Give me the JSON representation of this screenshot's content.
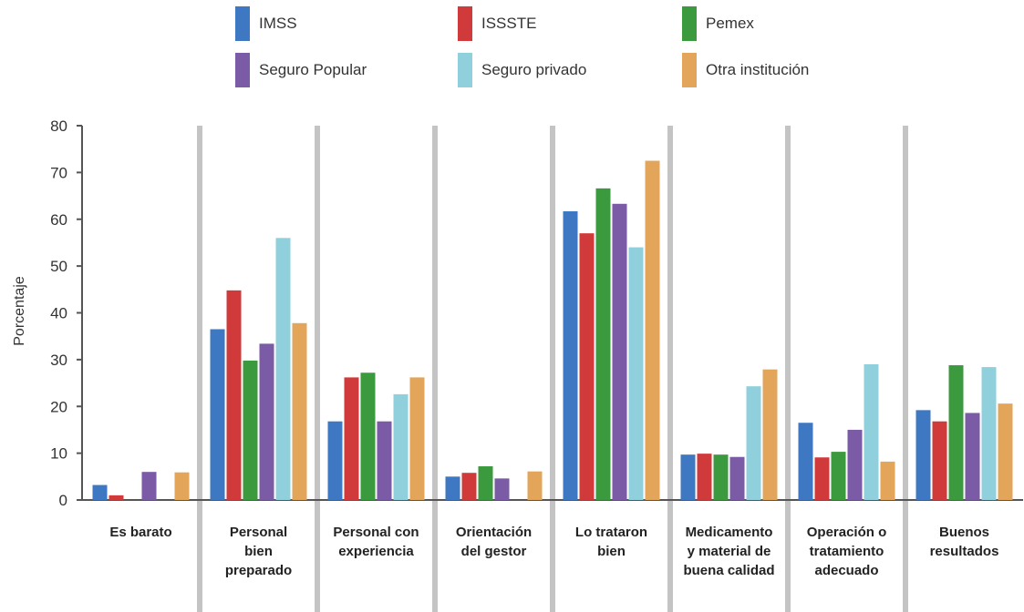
{
  "chart_data": {
    "type": "bar",
    "ylabel": "Porcentaje",
    "ylim": [
      0,
      80
    ],
    "yticks": [
      "0",
      "10",
      "20",
      "30",
      "40",
      "50",
      "60",
      "70",
      "80"
    ],
    "grid": false,
    "legend_position": "top",
    "categories": [
      "Es barato",
      "Personal\nbien\npreparado",
      "Personal con\nexperiencia",
      "Orientación\ndel gestor",
      "Lo trataron\nbien",
      "Medicamento\ny material de\nbuena calidad",
      "Operación o\ntratamiento\nadecuado",
      "Buenos\nresultados"
    ],
    "series": [
      {
        "name": "IMSS",
        "color": "#3e78c2",
        "values": [
          3.2,
          36.5,
          16.8,
          5.0,
          61.7,
          9.7,
          16.5,
          19.2
        ]
      },
      {
        "name": "ISSSTE",
        "color": "#d13a3a",
        "values": [
          1.0,
          44.8,
          26.2,
          5.8,
          57.0,
          9.9,
          9.1,
          16.8
        ]
      },
      {
        "name": "Pemex",
        "color": "#3c9a3e",
        "values": [
          0,
          29.8,
          27.2,
          7.2,
          66.6,
          9.7,
          10.3,
          28.8
        ]
      },
      {
        "name": "Seguro Popular",
        "color": "#7b5aa6",
        "values": [
          6.0,
          33.4,
          16.8,
          4.6,
          63.3,
          9.2,
          15.0,
          18.6
        ]
      },
      {
        "name": "Seguro privado",
        "color": "#8fd0dc",
        "values": [
          0,
          56.0,
          22.6,
          0,
          54.0,
          24.3,
          29.0,
          28.4
        ]
      },
      {
        "name": "Otra institución",
        "color": "#e2a55a",
        "values": [
          5.9,
          37.8,
          26.2,
          6.1,
          72.5,
          27.9,
          8.2,
          20.6
        ]
      }
    ]
  }
}
